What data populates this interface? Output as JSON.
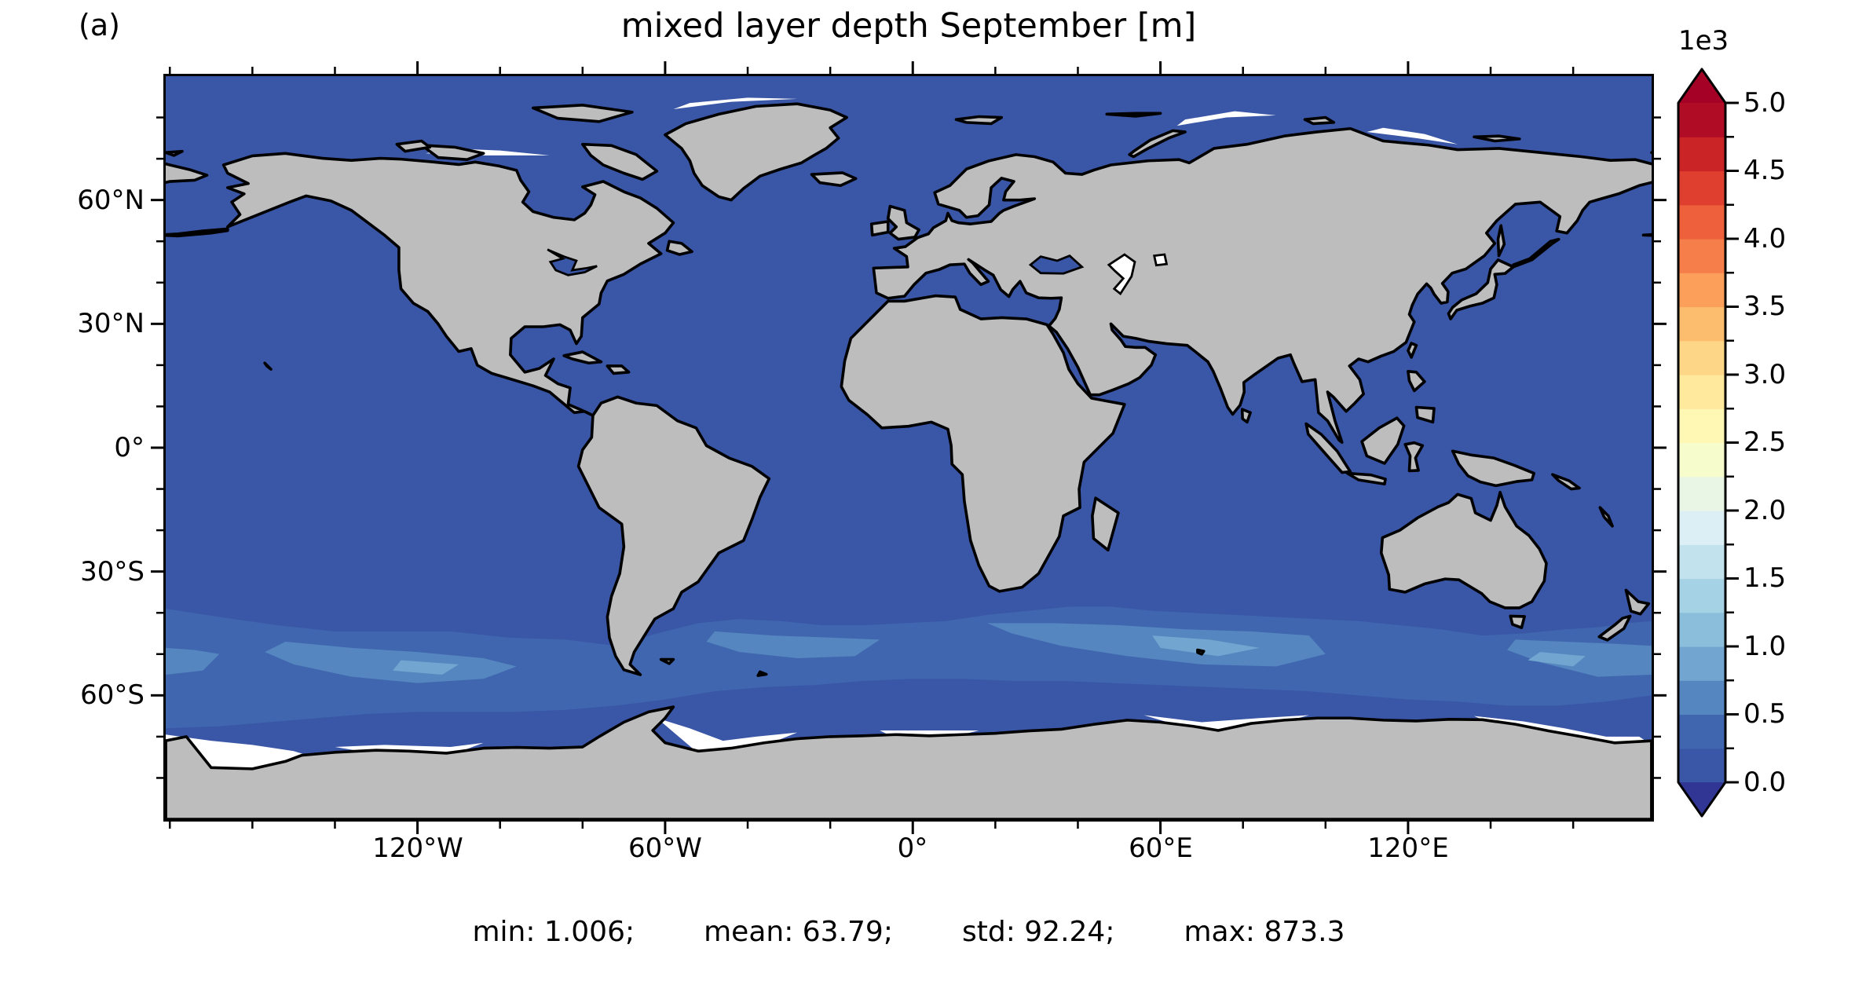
{
  "figure": {
    "panel_label": "(a)",
    "title": "mixed layer depth September [m]"
  },
  "axes": {
    "x_tick_labels": [
      "120°W",
      "60°W",
      "0°",
      "60°E",
      "120°E"
    ],
    "y_tick_labels": [
      "60°N",
      "30°N",
      "0°",
      "30°S",
      "60°S"
    ]
  },
  "colorbar": {
    "scale_label": "1e3",
    "tick_labels": [
      "5.0",
      "4.5",
      "4.0",
      "3.5",
      "3.0",
      "2.5",
      "2.0",
      "1.5",
      "1.0",
      "0.5",
      "0.0"
    ],
    "segment_colors_bottom_to_top": [
      "#3A56A6",
      "#3F66AF",
      "#5586BF",
      "#72A5CF",
      "#8BBEDA",
      "#A5D2E4",
      "#C2E3EE",
      "#DCEFF4",
      "#E9F6E5",
      "#F7FCCD",
      "#FFF8B4",
      "#FEE99D",
      "#FED687",
      "#FDBD6F",
      "#FB9F5B",
      "#F67E4B",
      "#EE5F3C",
      "#DE3F2E",
      "#CB2427",
      "#B10C26"
    ],
    "under_color": "#313695",
    "over_color": "#A50026"
  },
  "stats": {
    "min": "min: 1.006;",
    "mean": "mean: 63.79;",
    "std": "std: 92.24;",
    "max": "max: 873.3"
  },
  "colors": {
    "ocean": "#3A56A6",
    "band2": "#3F66AF",
    "band3": "#5586BF",
    "band4": "#72A5CF",
    "land": "#BDBDBD",
    "coast": "#000000",
    "nodata": "#FFFFFF",
    "frame": "#000000"
  },
  "chart_data": {
    "type": "heatmap",
    "title": "mixed layer depth September [m]",
    "variable": "mixed layer depth",
    "month": "September",
    "units": "m",
    "projection": "global equirectangular (lon -180..180, lat -90..90)",
    "colormap": "RdYlBu_r, discrete 250 m levels, colorbar extended with arrows on both ends",
    "colorbar_scale_factor": "1e3",
    "colorbar_ticks_1e3": [
      0.0,
      0.5,
      1.0,
      1.5,
      2.0,
      2.5,
      3.0,
      3.5,
      4.0,
      4.5,
      5.0
    ],
    "level_step_1e3": 0.25,
    "x_tick_lons_deg": [
      -120,
      -60,
      0,
      60,
      120
    ],
    "y_tick_lats_deg": [
      60,
      30,
      0,
      -30,
      -60
    ],
    "stats": {
      "min": 1.006,
      "mean": 63.79,
      "std": 92.24,
      "max": 873.3
    },
    "pattern": [
      {
        "region": "most of the global ocean",
        "value_m": "0-250 (darkest blue band of scale)"
      },
      {
        "region": "Southern Ocean belt ~40-62S",
        "value_m": "250-750 (lighter blue bands)"
      },
      {
        "region": "fringe along Antarctic coast, Caspian and Aral seas, slivers along Arctic coasts",
        "value_m": "no data (white)"
      },
      {
        "region": "land",
        "value_m": "masked (gray with black coastlines)"
      }
    ]
  }
}
